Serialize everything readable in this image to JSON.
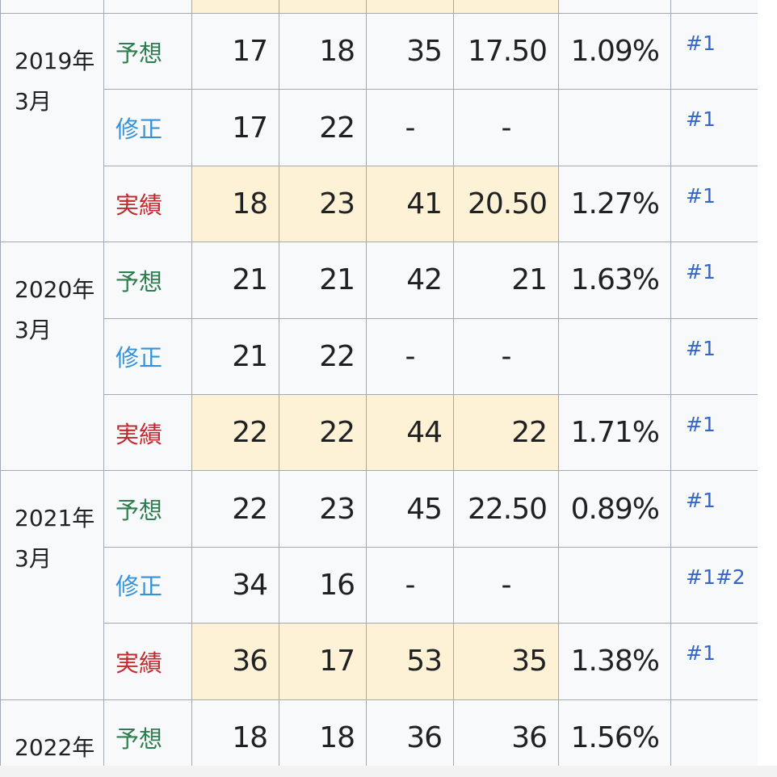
{
  "groups": [
    {
      "year": "2019年",
      "month": "3月",
      "rows": [
        {
          "type": "予想",
          "kind": "forecast",
          "cells": [
            "17",
            "18",
            "35",
            "17.50",
            "1.09%"
          ],
          "notes": [
            "#1"
          ]
        },
        {
          "type": "修正",
          "kind": "revised",
          "cells": [
            "17",
            "22",
            "-",
            "-",
            null
          ],
          "notes": [
            "#1"
          ]
        },
        {
          "type": "実績",
          "kind": "actual",
          "cells": [
            "18",
            "23",
            "41",
            "20.50",
            "1.27%"
          ],
          "notes": [
            "#1"
          ]
        }
      ]
    },
    {
      "year": "2020年",
      "month": "3月",
      "rows": [
        {
          "type": "予想",
          "kind": "forecast",
          "cells": [
            "21",
            "21",
            "42",
            "21",
            "1.63%"
          ],
          "notes": [
            "#1"
          ]
        },
        {
          "type": "修正",
          "kind": "revised",
          "cells": [
            "21",
            "22",
            "-",
            "-",
            null
          ],
          "notes": [
            "#1"
          ]
        },
        {
          "type": "実績",
          "kind": "actual",
          "cells": [
            "22",
            "22",
            "44",
            "22",
            "1.71%"
          ],
          "notes": [
            "#1"
          ]
        }
      ]
    },
    {
      "year": "2021年",
      "month": "3月",
      "rows": [
        {
          "type": "予想",
          "kind": "forecast",
          "cells": [
            "22",
            "23",
            "45",
            "22.50",
            "0.89%"
          ],
          "notes": [
            "#1"
          ]
        },
        {
          "type": "修正",
          "kind": "revised",
          "cells": [
            "34",
            "16",
            "-",
            "-",
            null
          ],
          "notes": [
            "#1",
            "#2"
          ]
        },
        {
          "type": "実績",
          "kind": "actual",
          "cells": [
            "36",
            "17",
            "53",
            "35",
            "1.38%"
          ],
          "notes": [
            "#1"
          ]
        }
      ]
    },
    {
      "year": "2022年",
      "rows": [
        {
          "type": "予想",
          "kind": "forecast",
          "cells": [
            "18",
            "18",
            "36",
            "36",
            "1.56%"
          ],
          "notes": []
        }
      ]
    }
  ]
}
